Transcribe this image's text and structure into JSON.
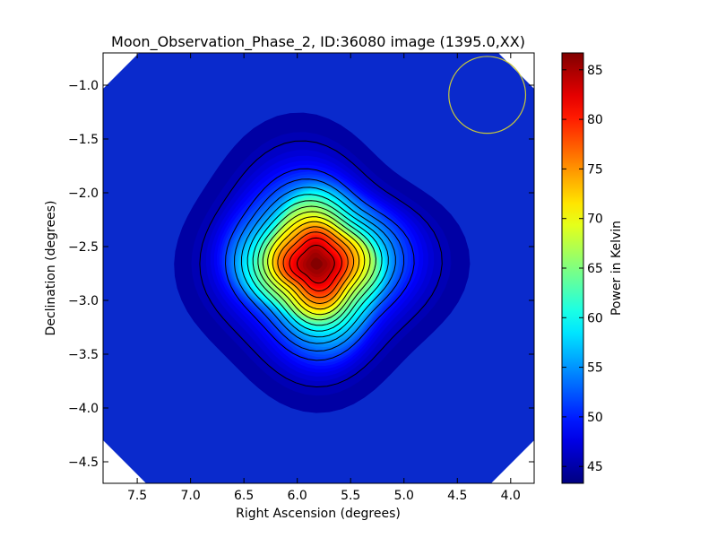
{
  "chart_data": {
    "type": "heatmap",
    "title": "Moon_Observation_Phase_2, ID:36080 image (1395.0,XX)",
    "xlabel": "Right Ascension (degrees)",
    "ylabel": "Declination (degrees)",
    "xlim": [
      7.82,
      3.78
    ],
    "ylim": [
      -4.7,
      -0.7
    ],
    "x_ticks": [
      7.5,
      7.0,
      6.5,
      6.0,
      5.5,
      5.0,
      4.5,
      4.0
    ],
    "x_tick_labels": [
      "7.5",
      "7.0",
      "6.5",
      "6.0",
      "5.5",
      "5.0",
      "4.5",
      "4.0"
    ],
    "y_ticks": [
      -1.0,
      -1.5,
      -2.0,
      -2.5,
      -3.0,
      -3.5,
      -4.0,
      -4.5
    ],
    "y_tick_labels": [
      "−1.0",
      "−1.5",
      "−2.0",
      "−2.5",
      "−3.0",
      "−3.5",
      "−4.0",
      "−4.5"
    ],
    "grid": false,
    "colormap": "jet",
    "value_range": [
      43.3,
      86.7
    ],
    "source": {
      "ra": 5.82,
      "dec": -2.66,
      "peak": 86.5,
      "background": 44.5,
      "sigma_deg": 0.42
    },
    "contour_count": 14,
    "beam_circle": {
      "ra": 4.22,
      "dec": -1.09,
      "radius": 0.36,
      "color": "#c8c83a"
    },
    "colorbar": {
      "label": "Power in Kelvin",
      "ticks": [
        45,
        50,
        55,
        60,
        65,
        70,
        75,
        80,
        85
      ],
      "tick_labels": [
        "45",
        "50",
        "55",
        "60",
        "65",
        "70",
        "75",
        "80",
        "85"
      ]
    }
  }
}
